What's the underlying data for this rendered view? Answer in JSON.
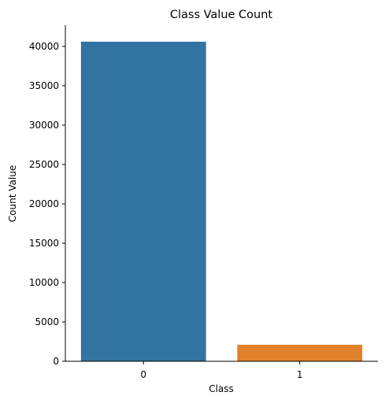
{
  "chart_data": {
    "type": "bar",
    "title": "Class Value Count",
    "xlabel": "Class",
    "ylabel": "Count Value",
    "categories": [
      "0",
      "1"
    ],
    "values": [
      40600,
      2100
    ],
    "colors": [
      "#3274a1",
      "#e1812c"
    ],
    "ylim": [
      0,
      42700
    ],
    "yticks": [
      0,
      5000,
      10000,
      15000,
      20000,
      25000,
      30000,
      35000,
      40000
    ],
    "grid": false,
    "legend": "none"
  }
}
